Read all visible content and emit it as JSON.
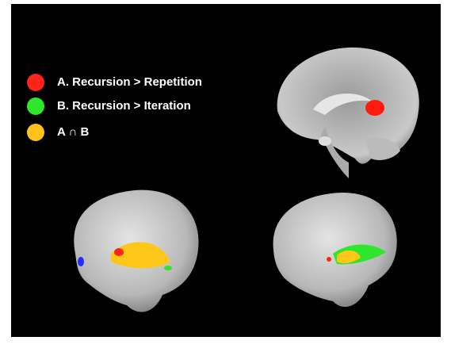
{
  "legend": [
    {
      "label": "A. Recursion > Repetition",
      "color": "#ff2418"
    },
    {
      "label": "B. Recursion > Iteration",
      "color": "#2ee62a"
    },
    {
      "label": "A ∩ B",
      "color": "#ffc21a"
    }
  ]
}
